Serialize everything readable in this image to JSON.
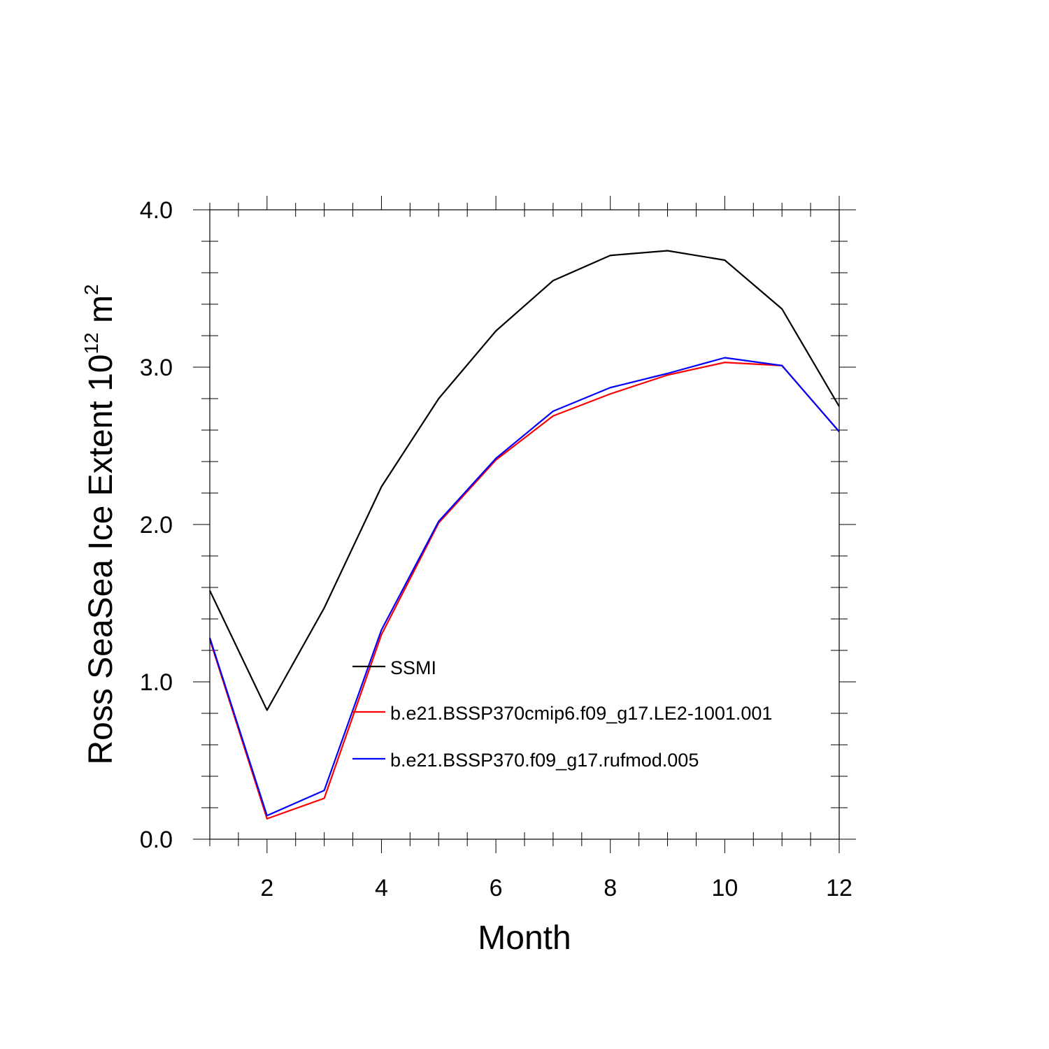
{
  "chart_data": {
    "type": "line",
    "title": "",
    "xlabel": "Month",
    "ylabel": {
      "main": "Ross SeaSea Ice Extent 10",
      "exp1": "12",
      "unit": " m",
      "exp2": "2"
    },
    "xlim": [
      1,
      12
    ],
    "ylim": [
      0,
      4
    ],
    "x": [
      1,
      2,
      3,
      4,
      5,
      6,
      7,
      8,
      9,
      10,
      11,
      12
    ],
    "x_ticks": [
      2,
      4,
      6,
      8,
      10,
      12
    ],
    "x_tick_labels": [
      "2",
      "4",
      "6",
      "8",
      "10",
      "12"
    ],
    "y_ticks": [
      0,
      1,
      2,
      3,
      4
    ],
    "y_tick_labels": [
      "0.0",
      "1.0",
      "2.0",
      "3.0",
      "4.0"
    ],
    "grid": false,
    "legend_position": "center",
    "series": [
      {
        "name": "SSMI",
        "color": "#000000",
        "values": [
          1.58,
          0.82,
          1.47,
          2.24,
          2.8,
          3.23,
          3.55,
          3.71,
          3.74,
          3.68,
          3.37,
          2.75
        ]
      },
      {
        "name": "b.e21.BSSP370cmip6.f09_g17.LE2-1001.001",
        "color": "#ff0000",
        "values": [
          1.27,
          0.13,
          0.26,
          1.3,
          2.01,
          2.41,
          2.69,
          2.83,
          2.95,
          3.03,
          3.01,
          2.59
        ]
      },
      {
        "name": "b.e21.BSSP370.f09_g17.rufmod.005",
        "color": "#0000ff",
        "values": [
          1.28,
          0.15,
          0.31,
          1.33,
          2.02,
          2.42,
          2.72,
          2.87,
          2.96,
          3.06,
          3.01,
          2.59
        ]
      }
    ]
  }
}
